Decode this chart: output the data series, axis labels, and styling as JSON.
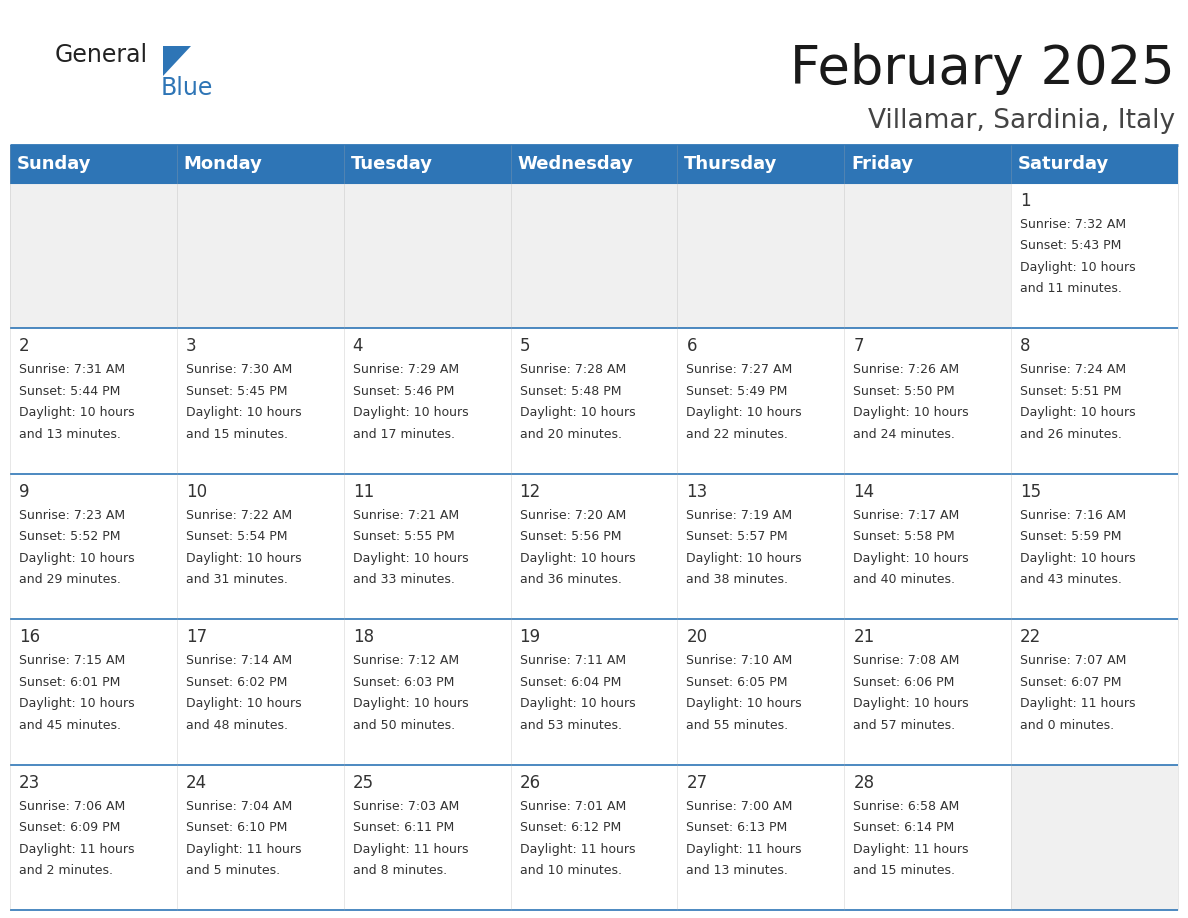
{
  "title": "February 2025",
  "subtitle": "Villamar, Sardinia, Italy",
  "header_color": "#2E75B6",
  "header_text_color": "#FFFFFF",
  "background_color": "#FFFFFF",
  "cell_bg_color": "#FFFFFF",
  "empty_cell_bg_color": "#F0F0F0",
  "border_color": "#2E75B6",
  "text_color": "#333333",
  "day_names": [
    "Sunday",
    "Monday",
    "Tuesday",
    "Wednesday",
    "Thursday",
    "Friday",
    "Saturday"
  ],
  "title_fontsize": 38,
  "subtitle_fontsize": 19,
  "header_fontsize": 13,
  "day_number_fontsize": 12,
  "cell_text_fontsize": 9,
  "logo_general_fontsize": 17,
  "logo_blue_fontsize": 17,
  "weeks": [
    [
      {
        "day": null,
        "sunrise": null,
        "sunset": null,
        "daylight": null
      },
      {
        "day": null,
        "sunrise": null,
        "sunset": null,
        "daylight": null
      },
      {
        "day": null,
        "sunrise": null,
        "sunset": null,
        "daylight": null
      },
      {
        "day": null,
        "sunrise": null,
        "sunset": null,
        "daylight": null
      },
      {
        "day": null,
        "sunrise": null,
        "sunset": null,
        "daylight": null
      },
      {
        "day": null,
        "sunrise": null,
        "sunset": null,
        "daylight": null
      },
      {
        "day": 1,
        "sunrise": "7:32 AM",
        "sunset": "5:43 PM",
        "daylight": "10 hours and 11 minutes."
      }
    ],
    [
      {
        "day": 2,
        "sunrise": "7:31 AM",
        "sunset": "5:44 PM",
        "daylight": "10 hours and 13 minutes."
      },
      {
        "day": 3,
        "sunrise": "7:30 AM",
        "sunset": "5:45 PM",
        "daylight": "10 hours and 15 minutes."
      },
      {
        "day": 4,
        "sunrise": "7:29 AM",
        "sunset": "5:46 PM",
        "daylight": "10 hours and 17 minutes."
      },
      {
        "day": 5,
        "sunrise": "7:28 AM",
        "sunset": "5:48 PM",
        "daylight": "10 hours and 20 minutes."
      },
      {
        "day": 6,
        "sunrise": "7:27 AM",
        "sunset": "5:49 PM",
        "daylight": "10 hours and 22 minutes."
      },
      {
        "day": 7,
        "sunrise": "7:26 AM",
        "sunset": "5:50 PM",
        "daylight": "10 hours and 24 minutes."
      },
      {
        "day": 8,
        "sunrise": "7:24 AM",
        "sunset": "5:51 PM",
        "daylight": "10 hours and 26 minutes."
      }
    ],
    [
      {
        "day": 9,
        "sunrise": "7:23 AM",
        "sunset": "5:52 PM",
        "daylight": "10 hours and 29 minutes."
      },
      {
        "day": 10,
        "sunrise": "7:22 AM",
        "sunset": "5:54 PM",
        "daylight": "10 hours and 31 minutes."
      },
      {
        "day": 11,
        "sunrise": "7:21 AM",
        "sunset": "5:55 PM",
        "daylight": "10 hours and 33 minutes."
      },
      {
        "day": 12,
        "sunrise": "7:20 AM",
        "sunset": "5:56 PM",
        "daylight": "10 hours and 36 minutes."
      },
      {
        "day": 13,
        "sunrise": "7:19 AM",
        "sunset": "5:57 PM",
        "daylight": "10 hours and 38 minutes."
      },
      {
        "day": 14,
        "sunrise": "7:17 AM",
        "sunset": "5:58 PM",
        "daylight": "10 hours and 40 minutes."
      },
      {
        "day": 15,
        "sunrise": "7:16 AM",
        "sunset": "5:59 PM",
        "daylight": "10 hours and 43 minutes."
      }
    ],
    [
      {
        "day": 16,
        "sunrise": "7:15 AM",
        "sunset": "6:01 PM",
        "daylight": "10 hours and 45 minutes."
      },
      {
        "day": 17,
        "sunrise": "7:14 AM",
        "sunset": "6:02 PM",
        "daylight": "10 hours and 48 minutes."
      },
      {
        "day": 18,
        "sunrise": "7:12 AM",
        "sunset": "6:03 PM",
        "daylight": "10 hours and 50 minutes."
      },
      {
        "day": 19,
        "sunrise": "7:11 AM",
        "sunset": "6:04 PM",
        "daylight": "10 hours and 53 minutes."
      },
      {
        "day": 20,
        "sunrise": "7:10 AM",
        "sunset": "6:05 PM",
        "daylight": "10 hours and 55 minutes."
      },
      {
        "day": 21,
        "sunrise": "7:08 AM",
        "sunset": "6:06 PM",
        "daylight": "10 hours and 57 minutes."
      },
      {
        "day": 22,
        "sunrise": "7:07 AM",
        "sunset": "6:07 PM",
        "daylight": "11 hours and 0 minutes."
      }
    ],
    [
      {
        "day": 23,
        "sunrise": "7:06 AM",
        "sunset": "6:09 PM",
        "daylight": "11 hours and 2 minutes."
      },
      {
        "day": 24,
        "sunrise": "7:04 AM",
        "sunset": "6:10 PM",
        "daylight": "11 hours and 5 minutes."
      },
      {
        "day": 25,
        "sunrise": "7:03 AM",
        "sunset": "6:11 PM",
        "daylight": "11 hours and 8 minutes."
      },
      {
        "day": 26,
        "sunrise": "7:01 AM",
        "sunset": "6:12 PM",
        "daylight": "11 hours and 10 minutes."
      },
      {
        "day": 27,
        "sunrise": "7:00 AM",
        "sunset": "6:13 PM",
        "daylight": "11 hours and 13 minutes."
      },
      {
        "day": 28,
        "sunrise": "6:58 AM",
        "sunset": "6:14 PM",
        "daylight": "11 hours and 15 minutes."
      },
      {
        "day": null,
        "sunrise": null,
        "sunset": null,
        "daylight": null
      }
    ]
  ]
}
